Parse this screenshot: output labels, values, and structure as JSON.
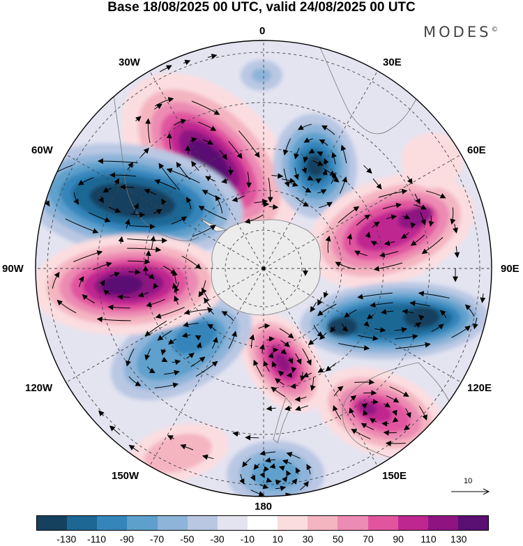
{
  "title": "Base 18/08/2025 00 UTC, valid 24/08/2025 00 UTC",
  "brand": "MODES",
  "brand_mark": "©",
  "longitude_labels": {
    "lon_0": "0",
    "lon_30e": "30E",
    "lon_60e": "60E",
    "lon_90e": "90E",
    "lon_120e": "120E",
    "lon_150e": "150E",
    "lon_180": "180",
    "lon_150w": "150W",
    "lon_120w": "120W",
    "lon_90w": "90W",
    "lon_60w": "60W",
    "lon_30w": "30W"
  },
  "reference_vector": {
    "label": "10"
  },
  "colorbar": {
    "colors": [
      "#15415f",
      "#1d6795",
      "#3585bb",
      "#5ea0cc",
      "#8eb4d9",
      "#b9c7e3",
      "#e4e4f1",
      "#ffffff",
      "#fbdde0",
      "#f4b5c1",
      "#ec8bb3",
      "#e1559f",
      "#bf2790",
      "#8f1482",
      "#5a0f73"
    ],
    "labels": [
      "-130",
      "-110",
      "-90",
      "-70",
      "-50",
      "-30",
      "-10",
      "10",
      "30",
      "50",
      "70",
      "90",
      "110",
      "130"
    ]
  },
  "map_data": {
    "projection": "south-polar-stereographic",
    "field": "anomaly",
    "centers": [
      {
        "name": "positive-anomaly-south-atlantic-30w",
        "sign": "positive",
        "peak": 130
      },
      {
        "name": "negative-anomaly-southeast-pacific-60w",
        "sign": "negative",
        "peak": -130
      },
      {
        "name": "negative-anomaly-south-atlantic-10e",
        "sign": "negative",
        "peak": -130
      },
      {
        "name": "positive-anomaly-indian-ocean-70e",
        "sign": "positive",
        "peak": 130
      },
      {
        "name": "negative-anomaly-south-indian-105e",
        "sign": "negative",
        "peak": -130
      },
      {
        "name": "positive-anomaly-australia-130e",
        "sign": "positive",
        "peak": 110
      },
      {
        "name": "positive-anomaly-ross-sea-165e",
        "sign": "positive",
        "peak": 130
      },
      {
        "name": "negative-anomaly-pacific-130w",
        "sign": "negative",
        "peak": -90
      },
      {
        "name": "positive-anomaly-pacific-95w",
        "sign": "positive",
        "peak": 130
      },
      {
        "name": "negative-anomaly-pacific-175w",
        "sign": "negative",
        "peak": -70
      },
      {
        "name": "positive-anomaly-pacific-155w",
        "sign": "positive",
        "peak": 50
      }
    ]
  }
}
